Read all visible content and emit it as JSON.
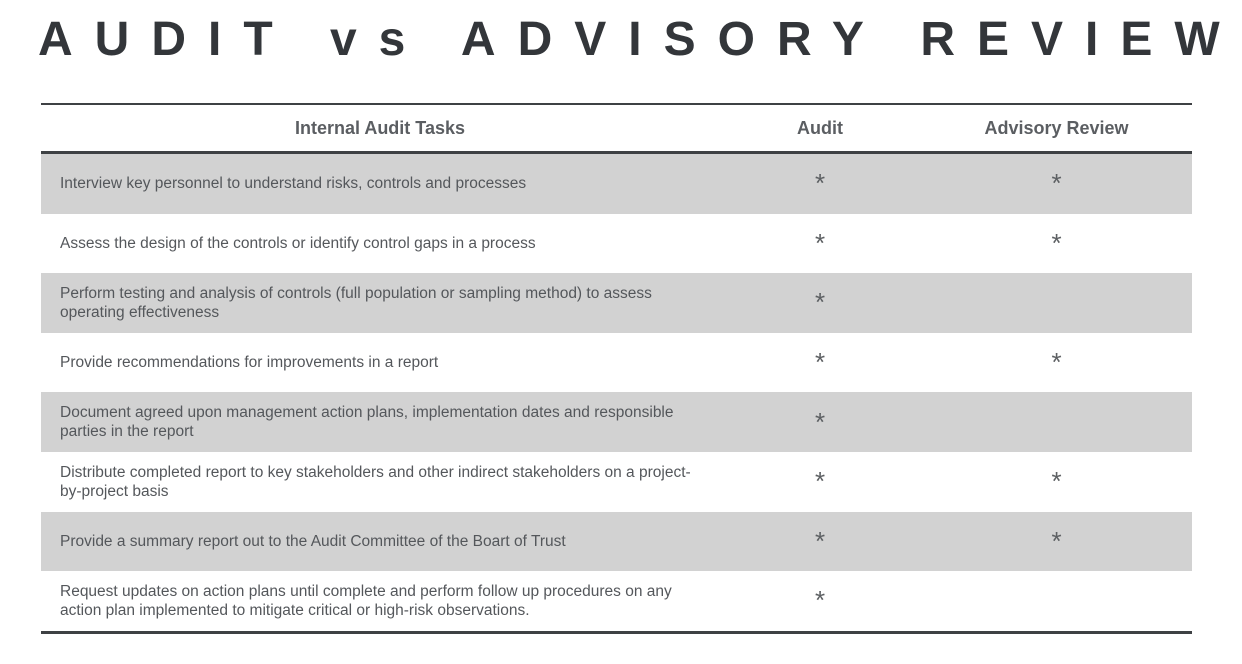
{
  "title": "AUDIT vs ADVISORY REVIEW",
  "colors": {
    "title_text": "#33363a",
    "rule": "#3e4144",
    "header_text": "#5b5e62",
    "body_text": "#54575b",
    "shaded_row": "#d2d2d2",
    "mark": "#5d6063"
  },
  "table": {
    "headers": {
      "tasks": "Internal Audit Tasks",
      "audit": "Audit",
      "advisory": "Advisory Review"
    },
    "mark_glyph": "*",
    "rows": [
      {
        "text": "Interview key personnel to understand risks, controls and processes",
        "audit": "*",
        "advisory": "*"
      },
      {
        "text": "Assess the design of the controls or identify control gaps in a process",
        "audit": "*",
        "advisory": "*"
      },
      {
        "text": "Perform testing and analysis of controls (full population or sampling method) to assess\noperating effectiveness",
        "audit": "*",
        "advisory": ""
      },
      {
        "text": "Provide recommendations for improvements in a report",
        "audit": "*",
        "advisory": "*"
      },
      {
        "text": "Document agreed upon management action plans, implementation dates and responsible\nparties in the report",
        "audit": "*",
        "advisory": ""
      },
      {
        "text": "Distribute completed report to key stakeholders and other indirect stakeholders on a project-\nby-project basis",
        "audit": "*",
        "advisory": "*"
      },
      {
        "text": "Provide a summary report out to the Audit Committee of the Boart of Trust",
        "audit": "*",
        "advisory": "*"
      },
      {
        "text": "Request updates on action plans until complete and perform follow up procedures on any\naction plan implemented to mitigate critical or high-risk observations.",
        "audit": "*",
        "advisory": ""
      }
    ]
  },
  "chart_data": {
    "type": "table",
    "title": "AUDIT vs ADVISORY REVIEW",
    "columns": [
      "Internal Audit Tasks",
      "Audit",
      "Advisory Review"
    ],
    "rows": [
      {
        "task": "Interview key personnel to understand risks, controls and processes",
        "audit": true,
        "advisory": true
      },
      {
        "task": "Assess the design of the controls or identify control gaps in a process",
        "audit": true,
        "advisory": true
      },
      {
        "task": "Perform testing and analysis of controls (full population or sampling method) to assess operating effectiveness",
        "audit": true,
        "advisory": false
      },
      {
        "task": "Provide recommendations for improvements in a report",
        "audit": true,
        "advisory": true
      },
      {
        "task": "Document agreed upon management action plans, implementation dates and responsible parties in the report",
        "audit": true,
        "advisory": false
      },
      {
        "task": "Distribute completed report to key stakeholders and other indirect stakeholders on a project-by-project basis",
        "audit": true,
        "advisory": true
      },
      {
        "task": "Provide a summary report out to the Audit Committee of the Boart of Trust",
        "audit": true,
        "advisory": true
      },
      {
        "task": "Request updates on action plans until complete and perform follow up procedures on any action plan implemented to mitigate critical or high-risk observations.",
        "audit": true,
        "advisory": false
      }
    ],
    "layout": {
      "shaded_rows": [
        0,
        2,
        4,
        6
      ],
      "mark_symbol": "*"
    }
  }
}
